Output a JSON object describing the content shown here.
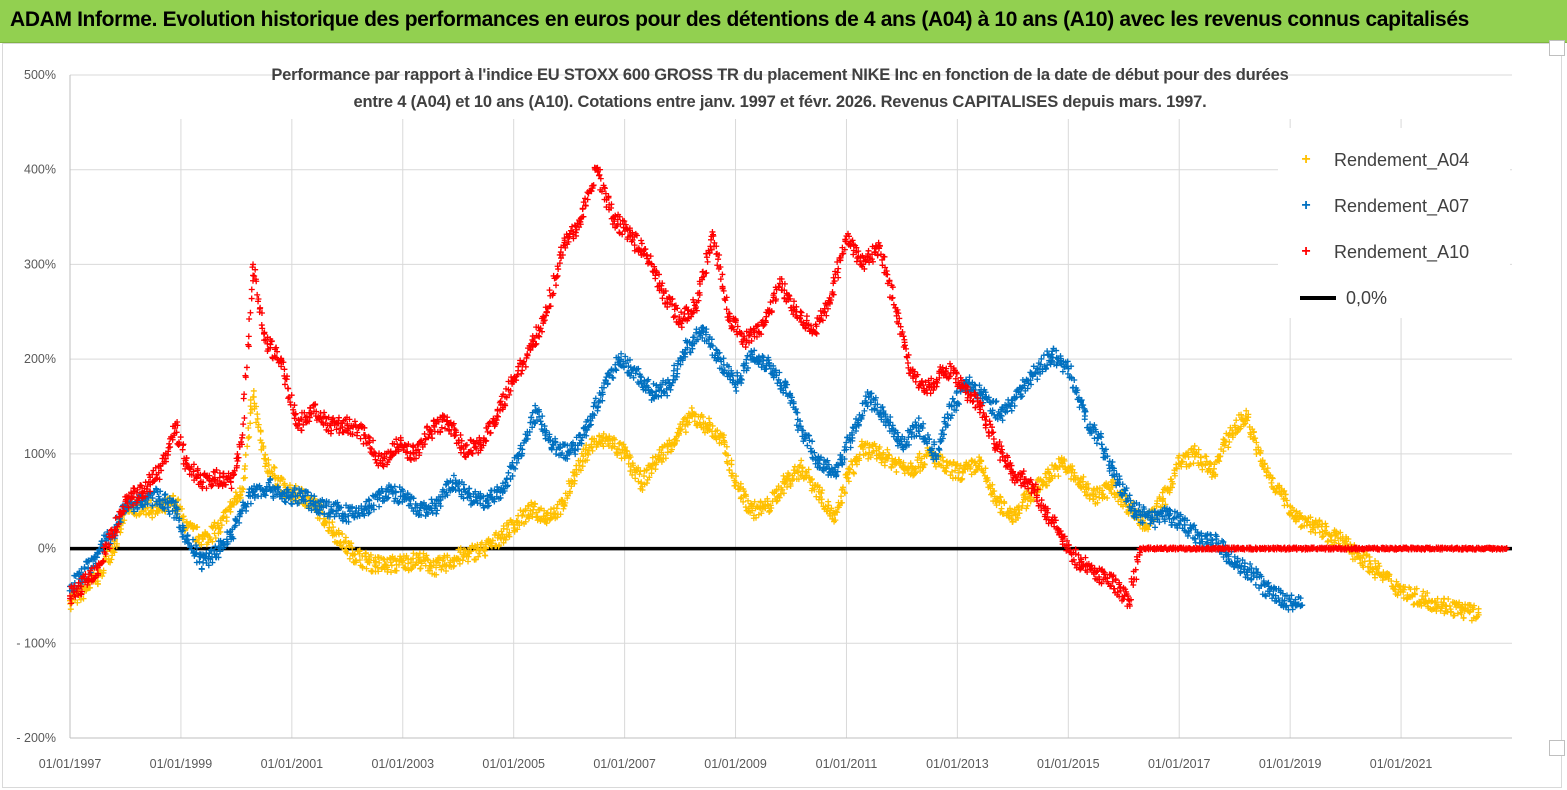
{
  "header": {
    "banner": "ADAM Informe. Evolution historique des performances en euros pour des détentions de 4 ans (A04) à 10 ans (A10) avec les revenus connus capitalisés"
  },
  "chart_data": {
    "type": "scatter",
    "title_line1": "Performance par rapport à l'indice EU STOXX 600 GROSS TR  du placement NIKE Inc en fonction de la date de début pour des durées",
    "title_line2": "entre 4 (A04) et 10 ans (A10).  Cotations entre janv. 1997 et févr. 2026. Revenus  CAPITALISES depuis mars. 1997.",
    "ylim": [
      -200,
      500
    ],
    "y_ticks": [
      -200,
      -100,
      0,
      100,
      200,
      300,
      400,
      500
    ],
    "y_tick_labels": [
      "- 200%",
      "- 100%",
      "0%",
      "100%",
      "200%",
      "300%",
      "400%",
      "500%"
    ],
    "x_range": [
      1997.0,
      2023.0
    ],
    "x_ticks": [
      1997,
      1999,
      2001,
      2003,
      2005,
      2007,
      2009,
      2011,
      2013,
      2015,
      2017,
      2019,
      2021
    ],
    "x_tick_labels": [
      "01/01/1997",
      "01/01/1999",
      "01/01/2001",
      "01/01/2003",
      "01/01/2005",
      "01/01/2007",
      "01/01/2009",
      "01/01/2011",
      "01/01/2013",
      "01/01/2015",
      "01/01/2017",
      "01/01/2019",
      "01/01/2021"
    ],
    "legend": "top-right",
    "marker": "+",
    "series": [
      {
        "name": "Rendement_A04",
        "color": "#ffc000",
        "x": [
          1997.0,
          1997.2,
          1997.5,
          1997.8,
          1998.0,
          1998.3,
          1998.6,
          1998.9,
          1999.1,
          1999.4,
          1999.7,
          1999.9,
          2000.1,
          2000.3,
          2000.5,
          2000.7,
          2000.9,
          2001.2,
          2001.5,
          2001.8,
          2002.1,
          2002.4,
          2002.7,
          2003.0,
          2003.3,
          2003.6,
          2003.9,
          2004.2,
          2004.5,
          2004.8,
          2005.0,
          2005.3,
          2005.6,
          2005.9,
          2006.1,
          2006.4,
          2006.7,
          2007.0,
          2007.3,
          2007.6,
          2007.9,
          2008.2,
          2008.5,
          2008.8,
          2009.0,
          2009.3,
          2009.6,
          2009.9,
          2010.2,
          2010.5,
          2010.8,
          2011.0,
          2011.3,
          2011.6,
          2011.9,
          2012.2,
          2012.5,
          2012.8,
          2013.1,
          2013.4,
          2013.7,
          2014.0,
          2014.3,
          2014.6,
          2014.9,
          2015.2,
          2015.5,
          2015.8,
          2016.1,
          2016.4,
          2016.7,
          2017.0,
          2017.3,
          2017.6,
          2017.9,
          2018.2,
          2018.5,
          2018.8,
          2019.1,
          2019.4,
          2019.7,
          2020.0,
          2020.3,
          2020.6,
          2020.9,
          2021.2,
          2021.5,
          2021.8,
          2022.1,
          2022.4
        ],
        "y": [
          -55,
          -48,
          -30,
          5,
          38,
          45,
          40,
          50,
          22,
          10,
          22,
          45,
          60,
          160,
          95,
          75,
          60,
          55,
          40,
          15,
          -5,
          -15,
          -18,
          -15,
          -12,
          -20,
          -12,
          -5,
          0,
          15,
          25,
          40,
          35,
          45,
          80,
          110,
          115,
          100,
          70,
          95,
          115,
          140,
          130,
          110,
          70,
          40,
          45,
          70,
          85,
          60,
          30,
          75,
          105,
          100,
          90,
          85,
          100,
          85,
          80,
          90,
          50,
          35,
          55,
          75,
          90,
          70,
          55,
          65,
          45,
          25,
          50,
          90,
          100,
          80,
          120,
          140,
          90,
          60,
          35,
          25,
          15,
          5,
          -10,
          -25,
          -40,
          -50,
          -55,
          -60,
          -65,
          -70
        ]
      },
      {
        "name": "Rendement_A07",
        "color": "#0070c0",
        "x": [
          1997.0,
          1997.2,
          1997.5,
          1997.8,
          1998.0,
          1998.3,
          1998.6,
          1998.9,
          1999.1,
          1999.4,
          1999.7,
          1999.9,
          2000.1,
          2000.3,
          2000.6,
          2000.9,
          2001.2,
          2001.5,
          2001.8,
          2002.1,
          2002.4,
          2002.7,
          2003.0,
          2003.3,
          2003.6,
          2003.9,
          2004.2,
          2004.5,
          2004.8,
          2005.1,
          2005.4,
          2005.7,
          2006.0,
          2006.3,
          2006.6,
          2006.9,
          2007.2,
          2007.5,
          2007.8,
          2008.1,
          2008.4,
          2008.7,
          2009.0,
          2009.3,
          2009.6,
          2009.9,
          2010.2,
          2010.5,
          2010.8,
          2011.1,
          2011.4,
          2011.7,
          2012.0,
          2012.3,
          2012.6,
          2012.9,
          2013.2,
          2013.5,
          2013.8,
          2014.1,
          2014.4,
          2014.7,
          2015.0,
          2015.3,
          2015.6,
          2015.9,
          2016.2,
          2016.5,
          2016.8,
          2017.1,
          2017.4,
          2017.7,
          2018.0,
          2018.3,
          2018.6,
          2018.9,
          2019.2
        ],
        "y": [
          -40,
          -30,
          -5,
          20,
          45,
          50,
          55,
          40,
          10,
          -15,
          0,
          15,
          40,
          60,
          65,
          55,
          55,
          45,
          40,
          35,
          45,
          60,
          55,
          40,
          45,
          70,
          55,
          50,
          60,
          100,
          145,
          110,
          100,
          125,
          165,
          200,
          185,
          165,
          170,
          210,
          230,
          200,
          175,
          205,
          195,
          170,
          125,
          90,
          80,
          120,
          160,
          140,
          110,
          130,
          100,
          150,
          175,
          160,
          140,
          165,
          185,
          205,
          190,
          140,
          110,
          70,
          40,
          30,
          35,
          25,
          10,
          5,
          -15,
          -25,
          -45,
          -55,
          -60
        ]
      },
      {
        "name": "Rendement_A10",
        "color": "#ff0000",
        "x": [
          1997.0,
          1997.2,
          1997.5,
          1997.8,
          1998.0,
          1998.3,
          1998.6,
          1998.9,
          1999.1,
          1999.4,
          1999.7,
          1999.9,
          2000.1,
          2000.3,
          2000.5,
          2000.8,
          2001.1,
          2001.4,
          2001.7,
          2002.0,
          2002.3,
          2002.6,
          2002.9,
          2003.2,
          2003.5,
          2003.8,
          2004.1,
          2004.4,
          2004.7,
          2005.0,
          2005.3,
          2005.6,
          2005.9,
          2006.2,
          2006.5,
          2006.8,
          2007.1,
          2007.4,
          2007.7,
          2008.0,
          2008.3,
          2008.6,
          2008.9,
          2009.2,
          2009.5,
          2009.8,
          2010.1,
          2010.4,
          2010.7,
          2011.0,
          2011.3,
          2011.6,
          2011.9,
          2012.2,
          2012.5,
          2012.8,
          2013.1,
          2013.4,
          2013.7,
          2014.0,
          2014.3,
          2014.6,
          2014.9,
          2015.2,
          2015.5,
          2015.8,
          2016.1,
          2016.3,
          2016.6,
          2016.9,
          2017.2,
          2017.5,
          2017.8,
          2018.1,
          2018.4,
          2018.7,
          2019.0,
          2019.3,
          2019.6,
          2019.9,
          2020.2,
          2020.5,
          2020.8,
          2021.1,
          2021.4,
          2021.7,
          2022.0,
          2022.3,
          2022.6,
          2022.9
        ],
        "y": [
          -50,
          -40,
          -20,
          20,
          50,
          60,
          80,
          130,
          90,
          70,
          75,
          70,
          110,
          300,
          220,
          200,
          130,
          145,
          130,
          130,
          120,
          90,
          110,
          100,
          125,
          135,
          105,
          110,
          140,
          180,
          210,
          250,
          320,
          345,
          400,
          350,
          330,
          310,
          270,
          240,
          260,
          330,
          240,
          220,
          235,
          280,
          250,
          230,
          260,
          330,
          300,
          320,
          250,
          180,
          170,
          190,
          170,
          150,
          110,
          80,
          70,
          40,
          10,
          -15,
          -25,
          -35,
          -55,
          0,
          0,
          0,
          0,
          0,
          0,
          0,
          0,
          0,
          0,
          0,
          0,
          0,
          0,
          0,
          0,
          0,
          0,
          0,
          0,
          0,
          0,
          0
        ]
      },
      {
        "name": "0,0%",
        "color": "#000000",
        "type": "line",
        "x": [
          1997.0,
          2023.0
        ],
        "y": [
          0,
          0
        ]
      }
    ]
  }
}
